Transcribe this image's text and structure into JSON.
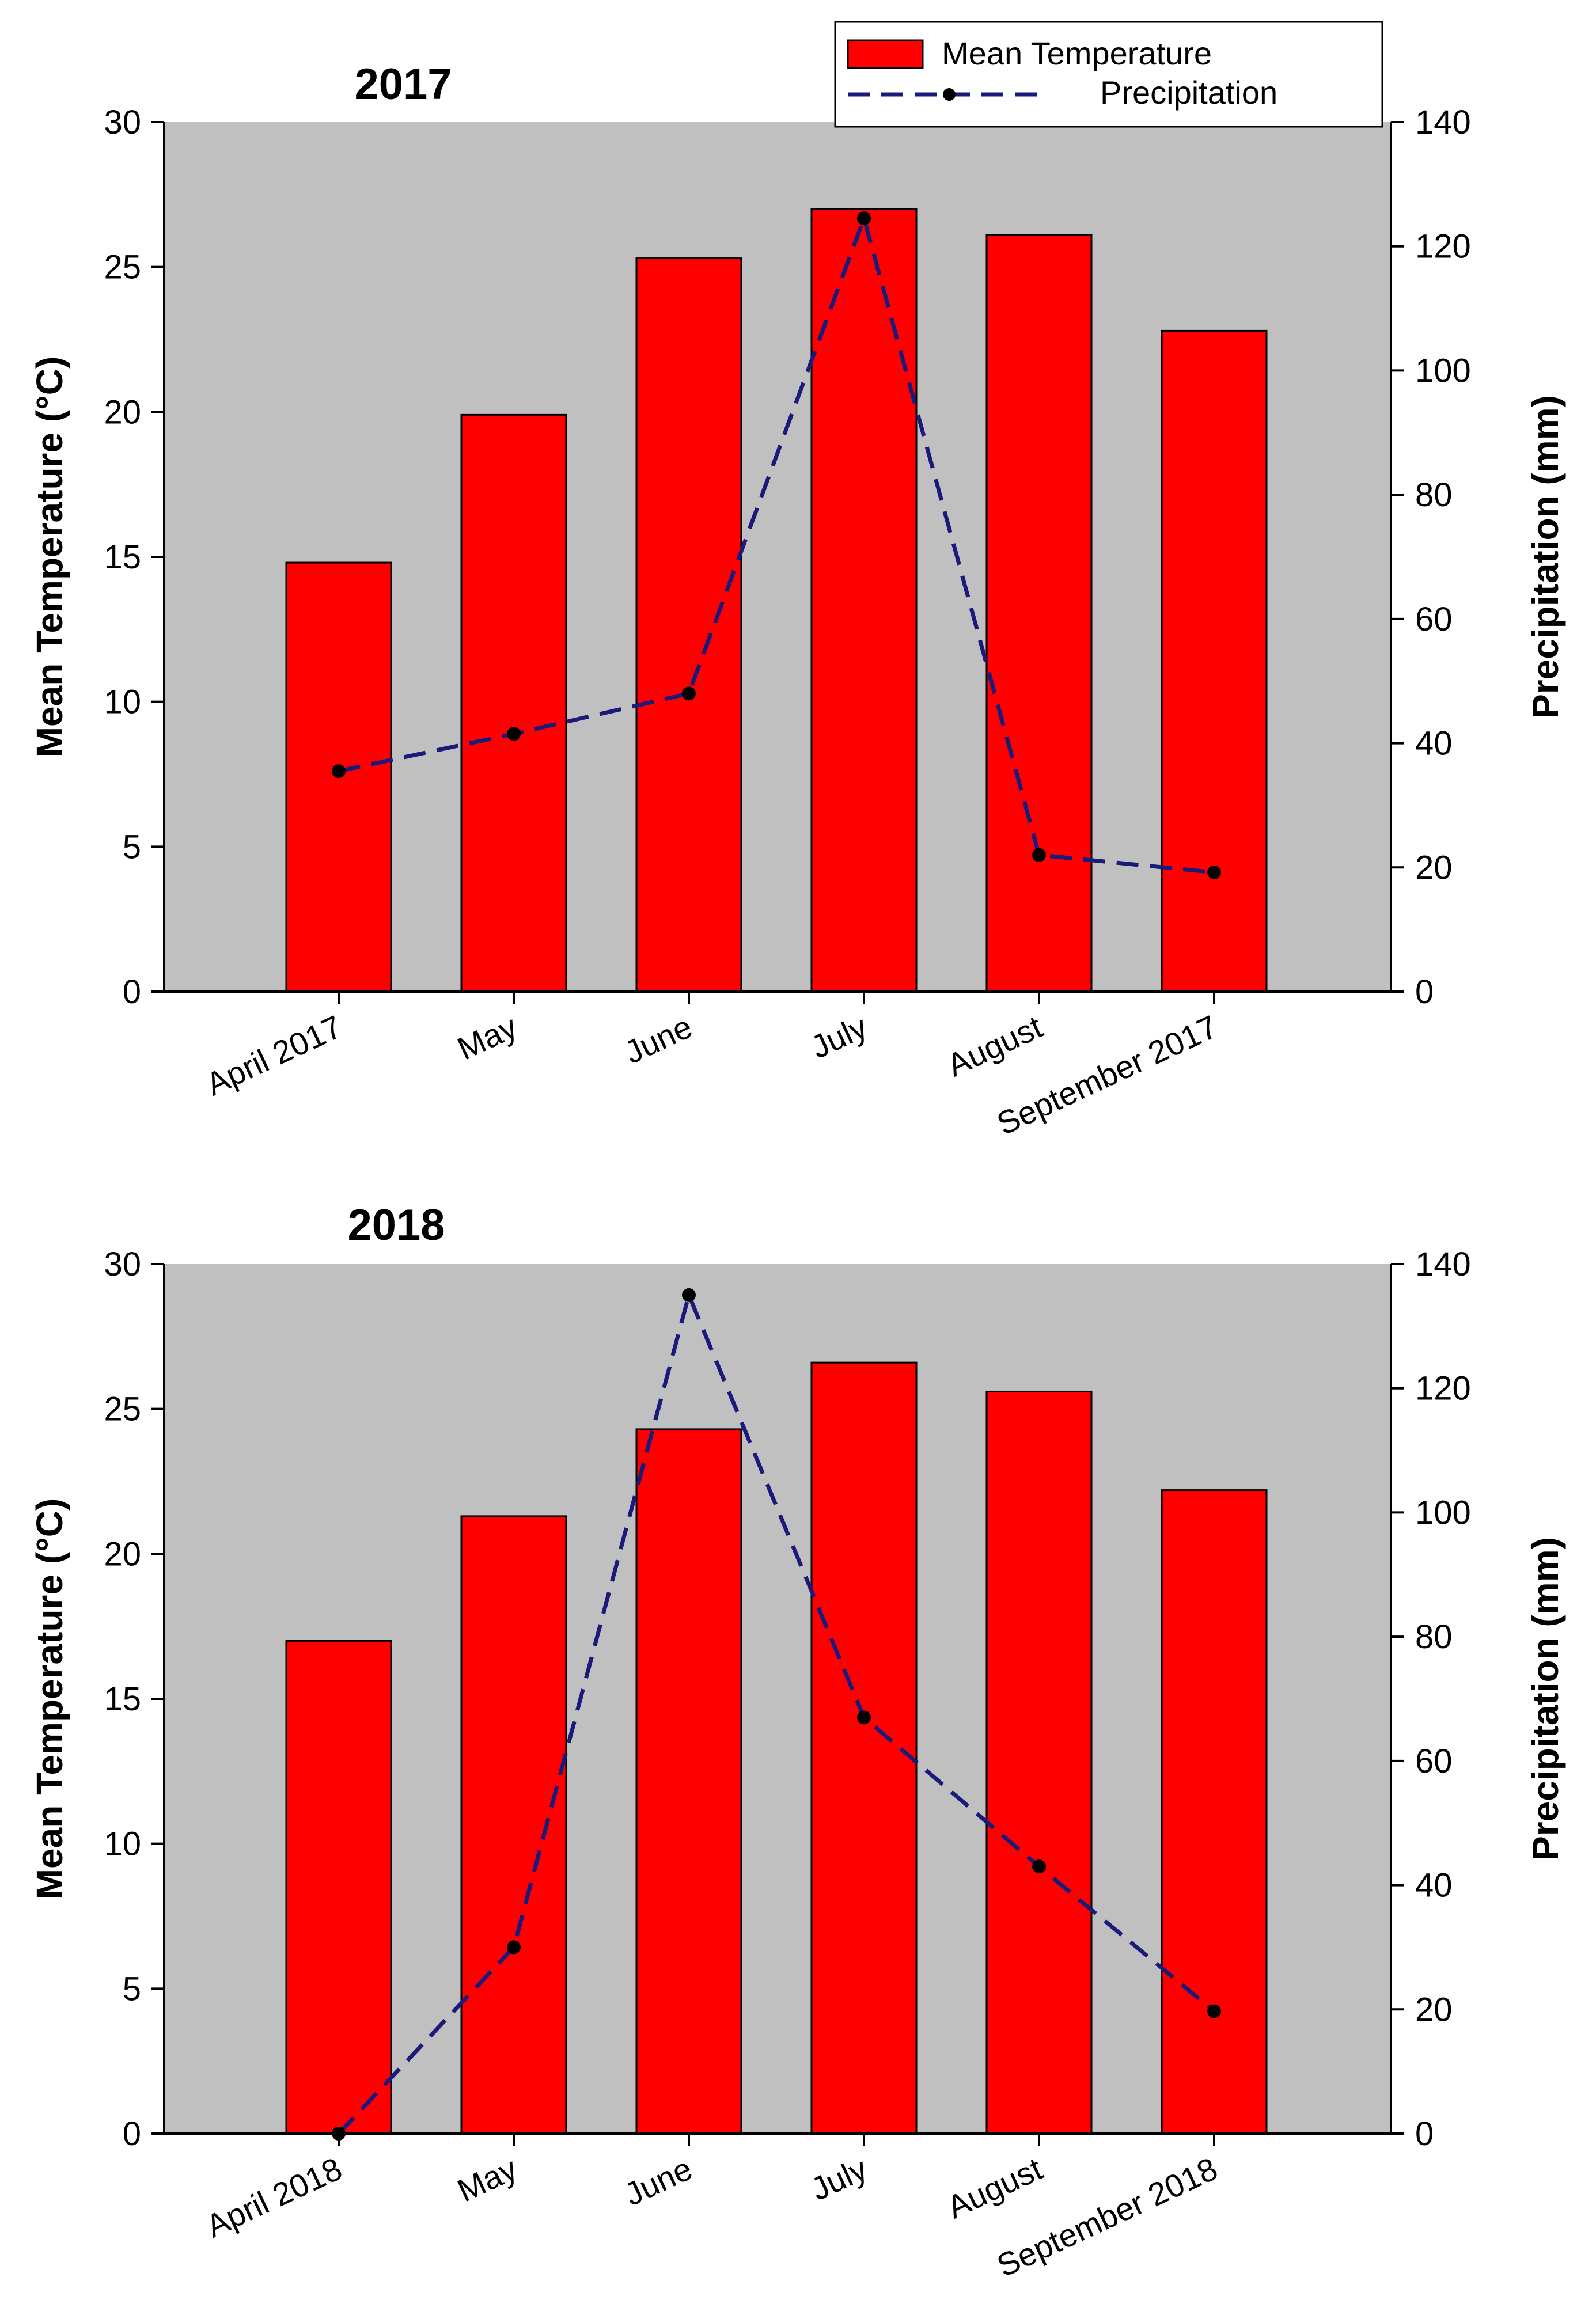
{
  "legend": {
    "bar_label": "Mean Temperature",
    "line_label": "Precipitation"
  },
  "colors": {
    "plot_bg": "#c0c0c0",
    "bar_fill": "#ff0000",
    "bar_stroke": "#000000",
    "line": "#1a1a7a",
    "marker": "#000000"
  },
  "chart_data": [
    {
      "type": "bar",
      "title": "2017",
      "categories": [
        "April 2017",
        "May",
        "June",
        "July",
        "August",
        "September 2017"
      ],
      "series": [
        {
          "name": "Mean Temperature",
          "type": "bar",
          "axis": "left",
          "values": [
            14.8,
            19.9,
            25.3,
            27.0,
            26.1,
            22.8
          ]
        },
        {
          "name": "Precipitation",
          "type": "line",
          "axis": "right",
          "values": [
            35.5,
            41.5,
            48.0,
            124.5,
            22.0,
            19.2
          ]
        }
      ],
      "ylabel": "Mean Temperature (°C)",
      "y2label": "Precipitation (mm)",
      "ylim": [
        0,
        30
      ],
      "y2lim": [
        0,
        140
      ],
      "yticks": [
        "0",
        "5",
        "10",
        "15",
        "20",
        "25",
        "30"
      ],
      "y2ticks": [
        "0",
        "20",
        "40",
        "60",
        "80",
        "100",
        "120",
        "140"
      ],
      "legend_position": "top-right"
    },
    {
      "type": "bar",
      "title": "2018",
      "categories": [
        "April 2018",
        "May",
        "June",
        "July",
        "August",
        "September 2018"
      ],
      "series": [
        {
          "name": "Mean Temperature",
          "type": "bar",
          "axis": "left",
          "values": [
            17.0,
            21.3,
            24.3,
            26.6,
            25.6,
            22.2
          ]
        },
        {
          "name": "Precipitation",
          "type": "line",
          "axis": "right",
          "values": [
            0.0,
            30.0,
            135.0,
            67.0,
            43.0,
            19.7
          ]
        }
      ],
      "ylabel": "Mean Temperature (°C)",
      "y2label": "Precipitation (mm)",
      "ylim": [
        0,
        30
      ],
      "y2lim": [
        0,
        140
      ],
      "yticks": [
        "0",
        "5",
        "10",
        "15",
        "20",
        "25",
        "30"
      ],
      "y2ticks": [
        "0",
        "20",
        "40",
        "60",
        "80",
        "100",
        "120",
        "140"
      ]
    }
  ]
}
